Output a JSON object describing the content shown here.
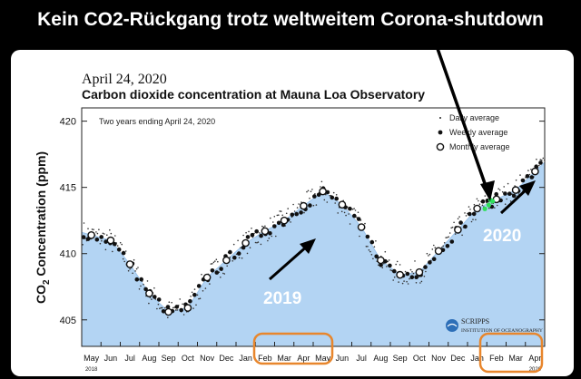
{
  "headline": "Kein CO2-Rückgang trotz weltweitem Corona-shutdown",
  "chart_data": {
    "type": "scatter",
    "date_title": "April 24, 2020",
    "title": "Carbon dioxide concentration at Mauna Loa Observatory",
    "subtitle": "Two years ending April 24, 2020",
    "ylabel_main": "CO",
    "ylabel_sub": "2",
    "ylabel_rest": " Concentration (ppm)",
    "ylim": [
      403,
      421
    ],
    "yticks": [
      405,
      410,
      415,
      420
    ],
    "xlim": [
      0,
      24
    ],
    "month_labels": [
      "May",
      "Jun",
      "Jul",
      "Aug",
      "Sep",
      "Oct",
      "Nov",
      "Dec",
      "Jan",
      "Feb",
      "Mar",
      "Apr",
      "May",
      "Jun",
      "Jul",
      "Aug",
      "Sep",
      "Oct",
      "Nov",
      "Dec",
      "Jan",
      "Feb",
      "Mar",
      "Apr"
    ],
    "year_labels": [
      {
        "label": "2018",
        "month_index": 0
      },
      {
        "label": "2020",
        "month_index": 23
      }
    ],
    "legend": {
      "position": "top-right",
      "entries": [
        "Daily average",
        "Weekly average",
        "Monthly average"
      ]
    },
    "series": [
      {
        "name": "Monthly average",
        "x": [
          0.5,
          1.5,
          2.5,
          3.5,
          4.5,
          5.5,
          6.5,
          7.5,
          8.5,
          9.5,
          10.5,
          11.5,
          12.5,
          13.5,
          14.5,
          15.5,
          16.5,
          17.5,
          18.5,
          19.5,
          20.5,
          21.5,
          22.5,
          23.5
        ],
        "y": [
          411.4,
          411.0,
          409.2,
          407.0,
          405.6,
          405.9,
          408.2,
          409.5,
          410.8,
          411.7,
          412.5,
          413.6,
          414.7,
          413.7,
          412.0,
          409.5,
          408.4,
          408.6,
          410.2,
          411.8,
          413.4,
          414.1,
          414.8,
          416.2
        ]
      }
    ],
    "annotations": [
      {
        "text": "2019",
        "color": "#ffffff"
      },
      {
        "text": "2020",
        "color": "#ffffff"
      }
    ],
    "highlight_months": [
      [
        "Feb",
        "Mar",
        "Apr",
        "May"
      ],
      [
        "Feb",
        "Mar",
        "Apr"
      ]
    ],
    "logo": {
      "name": "SCRIPPS",
      "sub": "INSTITUTION OF OCEANOGRAPHY",
      "icon": "scripps-logo-icon"
    },
    "colors": {
      "fill": "#b3d4f3",
      "fill_edge": "#9cc4ec",
      "highlight": "#e8862c",
      "annotation_arrow": "#000000",
      "green_dot": "#2fe05a"
    }
  }
}
